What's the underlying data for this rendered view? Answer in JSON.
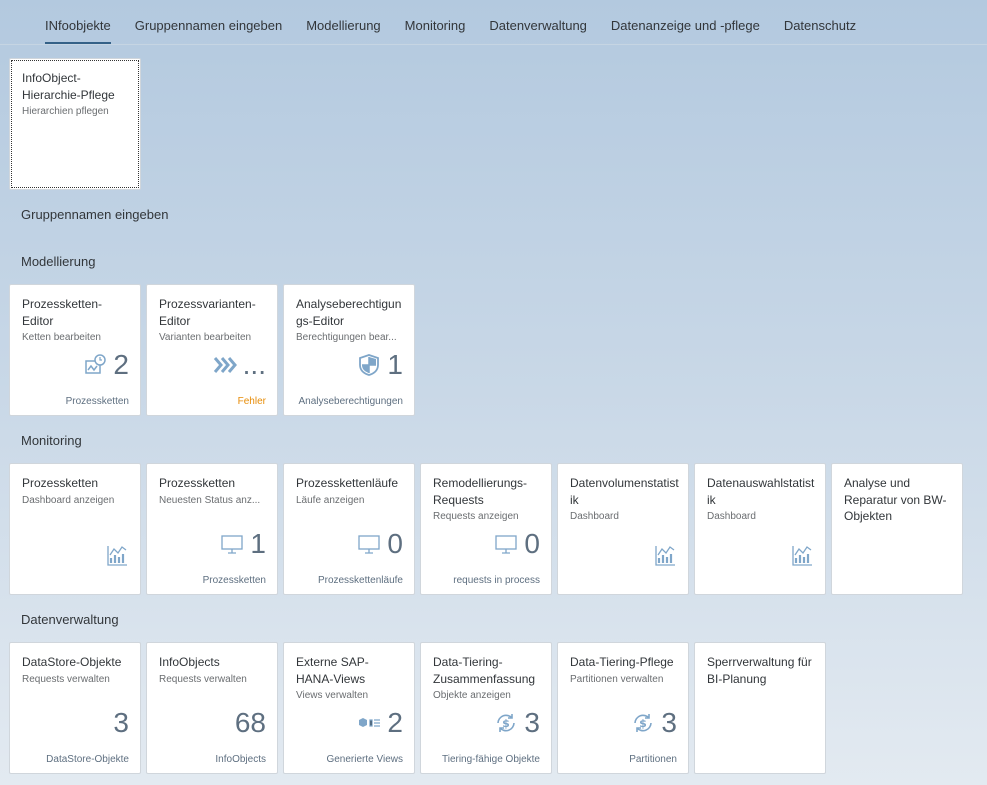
{
  "tabs": [
    "INfoobjekte",
    "Gruppennamen eingeben",
    "Modellierung",
    "Monitoring",
    "Datenverwaltung",
    "Datenanzeige und -pflege",
    "Datenschutz"
  ],
  "sections": [
    {
      "tiles": [
        {
          "title": "InfoObject-Hierarchie-Pflege",
          "subtitle": "Hierarchien pflegen"
        }
      ]
    },
    {
      "title": "Gruppennamen eingeben",
      "tiles": []
    },
    {
      "title": "Modellierung",
      "tiles": [
        {
          "title": "Prozessketten-Editor",
          "subtitle": "Ketten bearbeiten",
          "number": 2,
          "footer": "Prozessketten"
        },
        {
          "title": "Prozessvarianten-Editor",
          "subtitle": "Varianten bearbeiten",
          "number": "...",
          "footer": "Fehler"
        },
        {
          "title": "Analyseberechtigungs-Editor",
          "subtitle": "Berechtigungen bear...",
          "number": 1,
          "footer": "Analyseberechtigungen"
        }
      ]
    },
    {
      "title": "Monitoring",
      "tiles": [
        {
          "title": "Prozessketten",
          "subtitle": "Dashboard anzeigen"
        },
        {
          "title": "Prozessketten",
          "subtitle": "Neuesten Status anz...",
          "number": 1,
          "footer": "Prozessketten"
        },
        {
          "title": "Prozesskettenläufe",
          "subtitle": "Läufe anzeigen",
          "number": 0,
          "footer": "Prozesskettenläufe"
        },
        {
          "title": "Remodellierungs-Requests",
          "subtitle": "Requests anzeigen",
          "number": 0,
          "footer": "requests in process"
        },
        {
          "title": "Datenvolumenstatistik",
          "subtitle": "Dashboard"
        },
        {
          "title": "Datenauswahlstatistik",
          "subtitle": "Dashboard"
        },
        {
          "title": "Analyse und Reparatur von BW-Objekten"
        }
      ]
    },
    {
      "title": "Datenverwaltung",
      "tiles": [
        {
          "title": "DataStore-Objekte",
          "subtitle": "Requests verwalten",
          "number": 3,
          "footer": "DataStore-Objekte"
        },
        {
          "title": "InfoObjects",
          "subtitle": "Requests verwalten",
          "number": 68,
          "footer": "InfoObjects"
        },
        {
          "title": "Externe SAP-HANA-Views",
          "subtitle": "Views verwalten",
          "number": 2,
          "footer": "Generierte Views"
        },
        {
          "title": "Data-Tiering-Zusammenfassung",
          "subtitle": "Objekte anzeigen",
          "number": 3,
          "footer": "Tiering-fähige Objekte"
        },
        {
          "title": "Data-Tiering-Pflege",
          "subtitle": "Partitionen verwalten",
          "number": 3,
          "footer": "Partitionen"
        },
        {
          "title": "Sperrverwaltung für BI-Planung"
        }
      ]
    }
  ]
}
